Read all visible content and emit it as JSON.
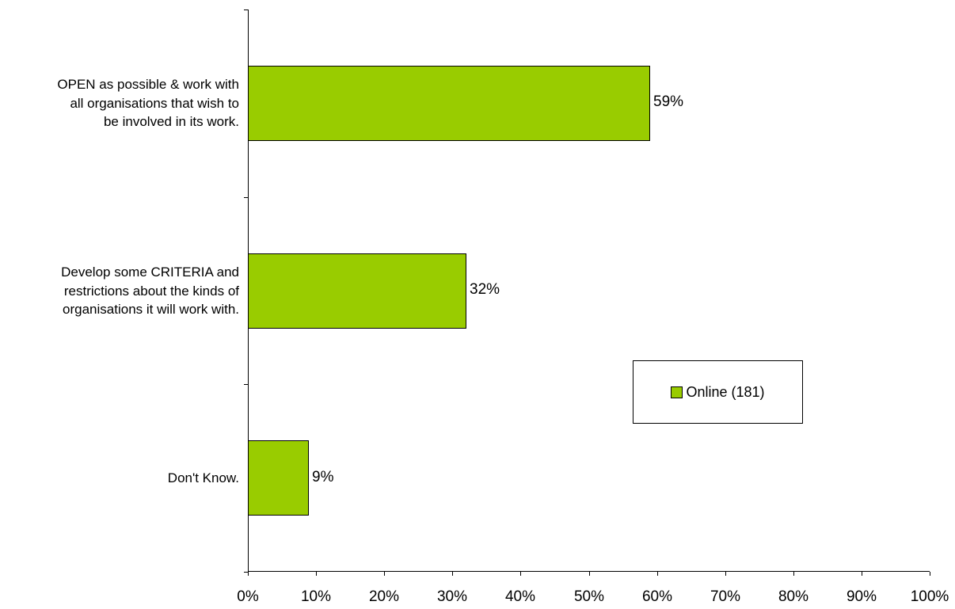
{
  "chart_data": {
    "type": "bar",
    "orientation": "horizontal",
    "categories": [
      "OPEN as possible & work with all organisations that wish to be involved in its work.",
      "Develop some CRITERIA and restrictions about the kinds of organisations it will work with.",
      "Don't Know."
    ],
    "category_lines": [
      [
        "OPEN as possible & work with",
        "all organisations that wish to",
        "be involved in its work."
      ],
      [
        "Develop some CRITERIA and",
        "restrictions about the kinds of",
        "organisations it will work with."
      ],
      [
        "Don't Know."
      ]
    ],
    "series": [
      {
        "name": "Online (181)",
        "values": [
          59,
          32,
          9
        ],
        "data_labels": [
          "59%",
          "32%",
          "9%"
        ],
        "color": "#99cc00"
      }
    ],
    "xlim": [
      0,
      100
    ],
    "xticks": [
      "0%",
      "10%",
      "20%",
      "30%",
      "40%",
      "50%",
      "60%",
      "70%",
      "80%",
      "90%",
      "100%"
    ],
    "legend_position": "right-middle",
    "grid": false
  }
}
